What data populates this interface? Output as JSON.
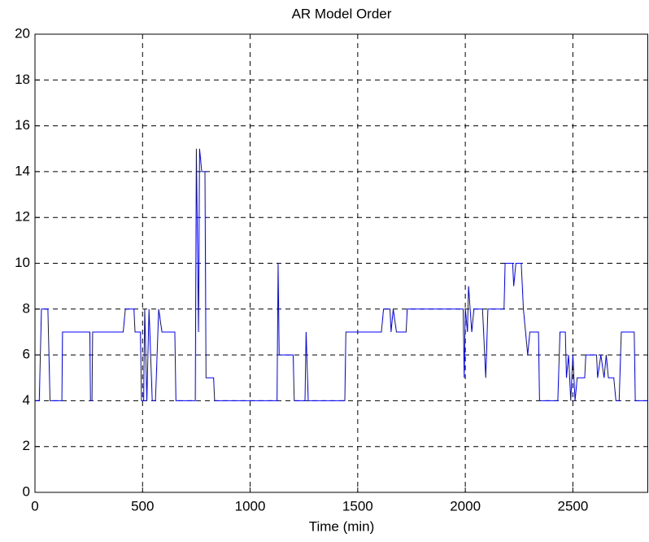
{
  "chart_data": {
    "type": "line",
    "title": "AR Model Order",
    "x_label": "Time (min)",
    "x": [
      0,
      20,
      30,
      60,
      70,
      125,
      128,
      255,
      258,
      265,
      268,
      410,
      420,
      460,
      465,
      490,
      495,
      505,
      510,
      520,
      530,
      545,
      560,
      575,
      590,
      650,
      655,
      745,
      750,
      760,
      765,
      775,
      790,
      795,
      830,
      835,
      1125,
      1130,
      1135,
      1200,
      1205,
      1255,
      1260,
      1270,
      1440,
      1445,
      1610,
      1620,
      1650,
      1655,
      1665,
      1680,
      1725,
      1730,
      1990,
      1995,
      2000,
      2010,
      2015,
      2030,
      2040,
      2080,
      2085,
      2095,
      2105,
      2180,
      2185,
      2220,
      2225,
      2235,
      2260,
      2270,
      2290,
      2300,
      2340,
      2345,
      2430,
      2440,
      2465,
      2470,
      2480,
      2490,
      2500,
      2510,
      2520,
      2555,
      2560,
      2610,
      2615,
      2630,
      2645,
      2655,
      2665,
      2690,
      2700,
      2715,
      2725,
      2785,
      2790,
      2850
    ],
    "series": [
      {
        "color": "#0000ff",
        "values": [
          4,
          4,
          8,
          8,
          4,
          4,
          7,
          7,
          4,
          4,
          7,
          7,
          8,
          8,
          7,
          7,
          4,
          4,
          8,
          4,
          8,
          4,
          4,
          8,
          7,
          7,
          4,
          4,
          15,
          7,
          15,
          14,
          14,
          5,
          5,
          4,
          4,
          10,
          6,
          6,
          4,
          4,
          7,
          4,
          4,
          7,
          7,
          8,
          8,
          7,
          8,
          7,
          7,
          8,
          8,
          5,
          8,
          7,
          9,
          7,
          8,
          8,
          7,
          5,
          8,
          8,
          10,
          10,
          9,
          10,
          10,
          8,
          6,
          7,
          7,
          4,
          4,
          7,
          7,
          5,
          6,
          4,
          6,
          4,
          5,
          5,
          6,
          6,
          5,
          6,
          5,
          6,
          5,
          5,
          4,
          4,
          7,
          7,
          4,
          4
        ]
      }
    ],
    "xlim": [
      0,
      2850
    ],
    "xticks": [
      0,
      500,
      1000,
      1500,
      2000,
      2500
    ],
    "ylim": [
      0,
      20
    ],
    "yticks": [
      0,
      2,
      4,
      6,
      8,
      10,
      12,
      14,
      16,
      18,
      20
    ],
    "grid": true
  }
}
